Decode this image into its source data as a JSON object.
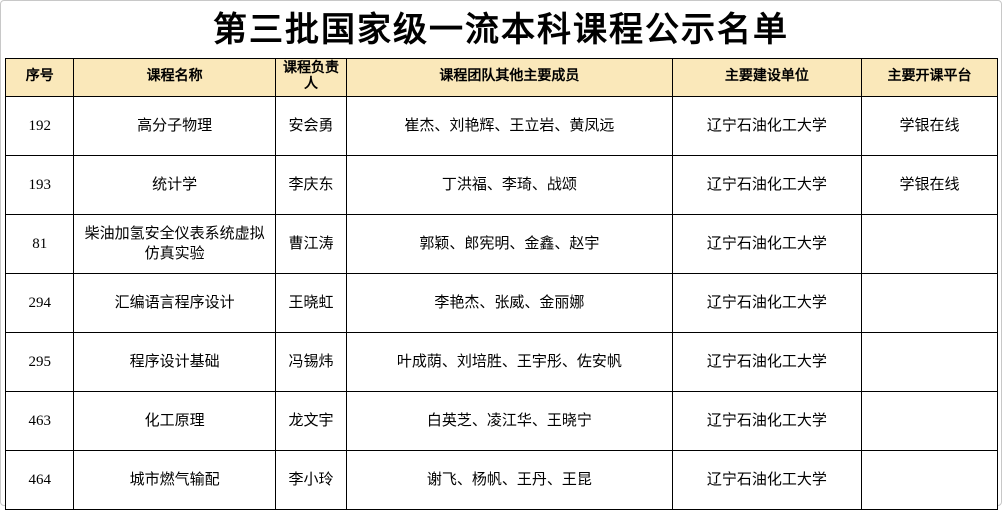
{
  "page": {
    "title": "第三批国家级一流本科课程公示名单"
  },
  "theme": {
    "header_bg": "#fae8ba",
    "border_color": "#000000",
    "text_color": "#000000"
  },
  "table": {
    "columns": [
      {
        "key": "serial",
        "label": "序号"
      },
      {
        "key": "course",
        "label": "课程名称"
      },
      {
        "key": "leader",
        "label": "课程负责人"
      },
      {
        "key": "members",
        "label": "课程团队其他主要成员"
      },
      {
        "key": "unit",
        "label": "主要建设单位"
      },
      {
        "key": "platform",
        "label": "主要开课平台"
      }
    ],
    "rows": [
      {
        "serial": "192",
        "course": "高分子物理",
        "leader": "安会勇",
        "members": "崔杰、刘艳辉、王立岩、黄凤远",
        "unit": "辽宁石油化工大学",
        "platform": "学银在线"
      },
      {
        "serial": "193",
        "course": "统计学",
        "leader": "李庆东",
        "members": "丁洪福、李琦、战颂",
        "unit": "辽宁石油化工大学",
        "platform": "学银在线"
      },
      {
        "serial": "81",
        "course": "柴油加氢安全仪表系统虚拟仿真实验",
        "leader": "曹江涛",
        "members": "郭颖、郎宪明、金鑫、赵宇",
        "unit": "辽宁石油化工大学",
        "platform": ""
      },
      {
        "serial": "294",
        "course": "汇编语言程序设计",
        "leader": "王晓虹",
        "members": "李艳杰、张威、金丽娜",
        "unit": "辽宁石油化工大学",
        "platform": ""
      },
      {
        "serial": "295",
        "course": "程序设计基础",
        "leader": "冯锡炜",
        "members": "叶成荫、刘培胜、王宇彤、佐安帆",
        "unit": "辽宁石油化工大学",
        "platform": ""
      },
      {
        "serial": "463",
        "course": "化工原理",
        "leader": "龙文宇",
        "members": "白英芝、凌江华、王晓宁",
        "unit": "辽宁石油化工大学",
        "platform": ""
      },
      {
        "serial": "464",
        "course": "城市燃气输配",
        "leader": "李小玲",
        "members": "谢飞、杨帆、王丹、王昆",
        "unit": "辽宁石油化工大学",
        "platform": ""
      }
    ]
  }
}
